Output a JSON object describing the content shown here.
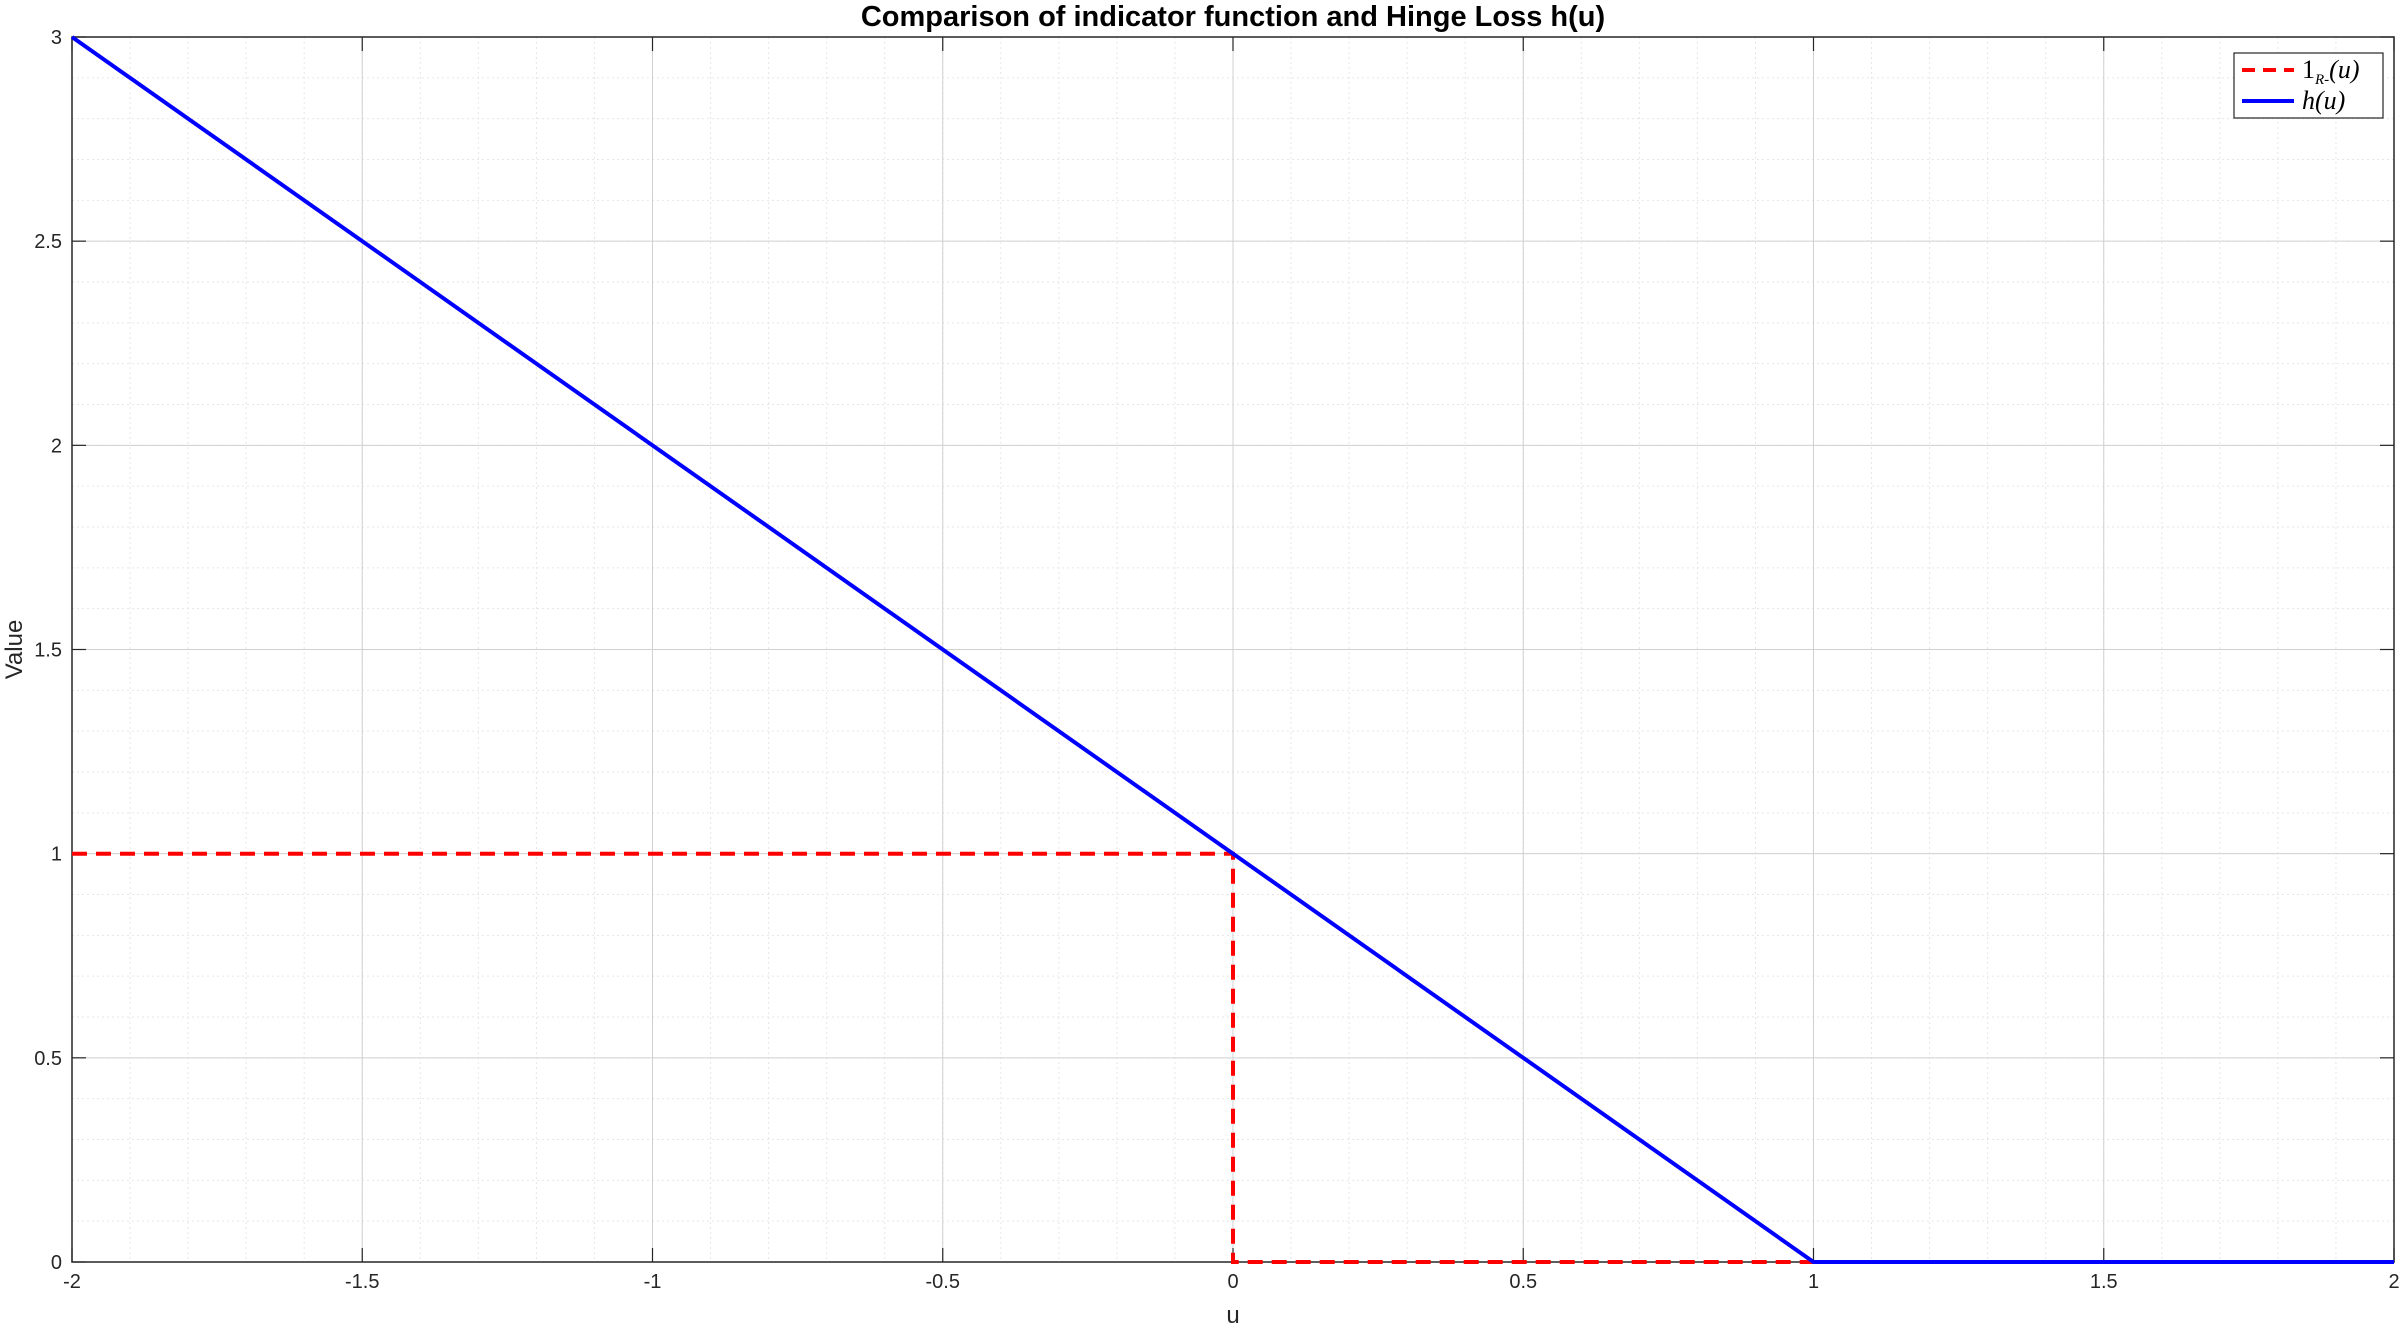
{
  "chart_data": {
    "type": "line",
    "title": "Comparison of indicator function and Hinge Loss h(u)",
    "xlabel": "u",
    "ylabel": "Value",
    "xlim": [
      -2,
      2
    ],
    "ylim": [
      0,
      3
    ],
    "xticks": [
      -2,
      -1.5,
      -1,
      -0.5,
      0,
      0.5,
      1,
      1.5,
      2
    ],
    "xtick_labels": [
      "-2",
      "-1.5",
      "-1",
      "-0.5",
      "0",
      "0.5",
      "1",
      "1.5",
      "2"
    ],
    "yticks": [
      0,
      0.5,
      1,
      1.5,
      2,
      2.5,
      3
    ],
    "ytick_labels": [
      "0",
      "0.5",
      "1",
      "1.5",
      "2",
      "2.5",
      "3"
    ],
    "grid": true,
    "minor_grid": true,
    "legend_position": "top-right",
    "series": [
      {
        "name": "1_{R-}(u)",
        "legend_main": "1",
        "legend_sub": "R-",
        "legend_tail": "(u)",
        "color": "#ff0000",
        "style": "dashed",
        "x": [
          -2,
          0,
          0,
          1
        ],
        "y": [
          1,
          1,
          0,
          0
        ]
      },
      {
        "name": "h(u)",
        "legend_main": "h(u)",
        "legend_sub": "",
        "legend_tail": "",
        "color": "#0000ff",
        "style": "solid",
        "x": [
          -2,
          1,
          2
        ],
        "y": [
          3,
          0,
          0
        ]
      }
    ]
  }
}
